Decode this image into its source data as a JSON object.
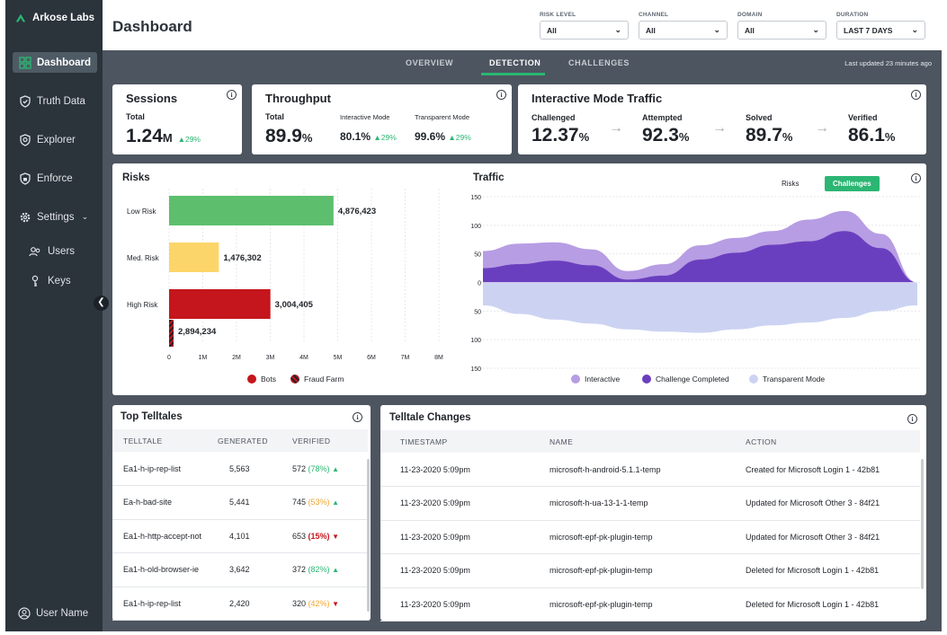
{
  "brand": {
    "name": "Arkose Labs"
  },
  "sidebar": {
    "items": [
      {
        "label": "Dashboard"
      },
      {
        "label": "Truth Data"
      },
      {
        "label": "Explorer"
      },
      {
        "label": "Enforce"
      },
      {
        "label": "Settings"
      }
    ],
    "sub_items": [
      {
        "label": "Users"
      },
      {
        "label": "Keys"
      }
    ],
    "user": {
      "label": "User Name"
    }
  },
  "header": {
    "title": "Dashboard",
    "filters": [
      {
        "label": "RISK LEVEL",
        "value": "All"
      },
      {
        "label": "CHANNEL",
        "value": "All"
      },
      {
        "label": "DOMAIN",
        "value": "All"
      },
      {
        "label": "DURATION",
        "value": "LAST 7 DAYS"
      }
    ]
  },
  "tabs": [
    {
      "label": "OVERVIEW"
    },
    {
      "label": "DETECTION"
    },
    {
      "label": "CHALLENGES"
    }
  ],
  "last_updated": "Last updated 23 minutes ago",
  "sessions": {
    "title": "Sessions",
    "label": "Total",
    "value": "1.24",
    "unit": "M",
    "delta": "▲29%"
  },
  "throughput": {
    "title": "Throughput",
    "total": {
      "label": "Total",
      "value": "89.9",
      "unit": "%"
    },
    "interactive": {
      "label": "Interactive Mode",
      "value": "80.1%",
      "delta": "▲29%"
    },
    "transparent": {
      "label": "Transparent Mode",
      "value": "99.6%",
      "delta": "▲29%"
    }
  },
  "interactive_traffic": {
    "title": "Interactive Mode Traffic",
    "metrics": [
      {
        "label": "Challenged",
        "value": "12.37",
        "unit": "%"
      },
      {
        "label": "Attempted",
        "value": "92.3",
        "unit": "%"
      },
      {
        "label": "Solved",
        "value": "89.7",
        "unit": "%"
      },
      {
        "label": "Verified",
        "value": "86.1",
        "unit": "%"
      }
    ]
  },
  "colors": {
    "accent": "#2bb673",
    "low": "#5dbf6e",
    "med": "#fcd56a",
    "high": "#c4161c",
    "interactive": "#b79de3",
    "completed": "#6a3fbf",
    "transparent": "#ccd3f2"
  },
  "chart_data": [
    {
      "type": "bar",
      "title": "Risks",
      "categories": [
        "Low Risk",
        "Med. Risk",
        "High Risk"
      ],
      "series": [
        {
          "name": "Bots",
          "values": [
            4876423,
            1476302,
            3004405
          ]
        },
        {
          "name": "Fraud Farm",
          "values": [
            0,
            0,
            2894234
          ]
        }
      ],
      "value_labels": [
        "4,876,423",
        "1,476,302",
        "3,004,405",
        "2,894,234"
      ],
      "x_ticks": [
        "0",
        "1M",
        "2M",
        "3M",
        "4M",
        "5M",
        "6M",
        "7M",
        "8M"
      ],
      "xlim": [
        0,
        8000000
      ],
      "legend": [
        "Bots",
        "Fraud Farm"
      ]
    },
    {
      "type": "area",
      "title": "Traffic",
      "toggle": [
        "Risks",
        "Challenges"
      ],
      "y_ticks": [
        "150",
        "100",
        "50",
        "0",
        "50",
        "100",
        "150"
      ],
      "x": [
        0,
        1,
        2,
        3,
        4,
        5,
        6,
        7,
        8,
        9,
        10,
        11,
        12
      ],
      "series": [
        {
          "name": "Interactive",
          "values": [
            55,
            68,
            70,
            58,
            20,
            32,
            65,
            78,
            90,
            110,
            125,
            85,
            0
          ]
        },
        {
          "name": "Challenge Completed",
          "values": [
            25,
            32,
            38,
            30,
            5,
            12,
            40,
            52,
            66,
            72,
            90,
            60,
            0
          ]
        },
        {
          "name": "Transparent Mode",
          "values": [
            -40,
            -55,
            -65,
            -72,
            -82,
            -86,
            -88,
            -82,
            -75,
            -70,
            -62,
            -50,
            -40
          ]
        }
      ],
      "ylim": [
        -150,
        150
      ]
    }
  ],
  "top_telltales": {
    "title": "Top Telltales",
    "columns": [
      "TELLTALE",
      "GENERATED",
      "VERIFIED"
    ],
    "rows": [
      {
        "name": "Ea1-h-ip-rep-list",
        "generated": "5,563",
        "verified": "572",
        "pct": "(78%)",
        "trend": "▲",
        "level": "good"
      },
      {
        "name": "Ea-h-bad-site",
        "generated": "5,441",
        "verified": "745",
        "pct": "(53%)",
        "trend": "▲",
        "level": "warn"
      },
      {
        "name": "Ea1-h-http-accept-not",
        "generated": "4,101",
        "verified": "653",
        "pct": "(15%)",
        "trend": "▼",
        "level": "bad"
      },
      {
        "name": "Ea1-h-old-browser-ie",
        "generated": "3,642",
        "verified": "372",
        "pct": "(82%)",
        "trend": "▲",
        "level": "good"
      },
      {
        "name": "Ea1-h-ip-rep-list",
        "generated": "2,420",
        "verified": "320",
        "pct": "(42%)",
        "trend": "▼",
        "level": "warn"
      }
    ]
  },
  "telltale_changes": {
    "title": "Telltale Changes",
    "columns": [
      "TIMESTAMP",
      "NAME",
      "ACTION"
    ],
    "rows": [
      {
        "timestamp": "11-23-2020 5:09pm",
        "name": "microsoft-h-android-5.1.1-temp",
        "action": "Created for Microsoft Login 1 - 42b81"
      },
      {
        "timestamp": "11-23-2020 5:09pm",
        "name": "microsoft-h-ua-13-1-1-temp",
        "action": "Updated for Microsoft Other 3 - 84f21"
      },
      {
        "timestamp": "11-23-2020 5:09pm",
        "name": "microsoft-epf-pk-plugin-temp",
        "action": "Updated for Microsoft Other 3 - 84f21"
      },
      {
        "timestamp": "11-23-2020 5:09pm",
        "name": "microsoft-epf-pk-plugin-temp",
        "action": "Deleted for Microsoft Login 1 - 42b81"
      },
      {
        "timestamp": "11-23-2020 5:09pm",
        "name": "microsoft-epf-pk-plugin-temp",
        "action": "Deleted for Microsoft Login 1 - 42b81"
      }
    ]
  }
}
